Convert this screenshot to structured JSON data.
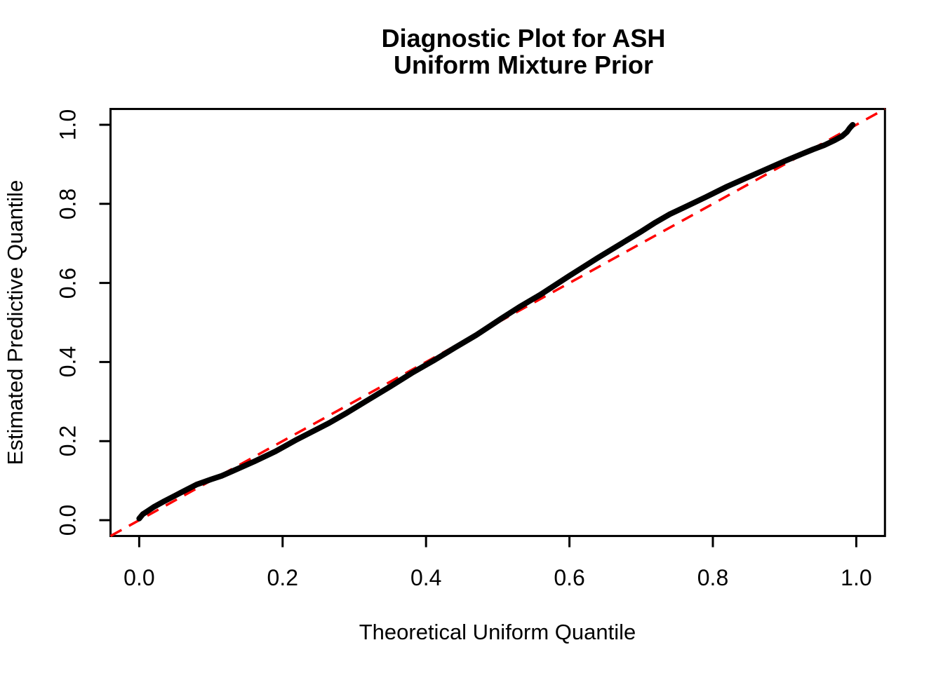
{
  "title": {
    "line1": "Diagnostic Plot for ASH",
    "line2": "Uniform Mixture Prior"
  },
  "axes": {
    "x_label": "Theoretical Uniform Quantile",
    "y_label": "Estimated Predictive Quantile",
    "x_tick_labels": [
      "0.0",
      "0.2",
      "0.4",
      "0.6",
      "0.8",
      "1.0"
    ],
    "y_tick_labels": [
      "0.0",
      "0.2",
      "0.4",
      "0.6",
      "0.8",
      "1.0"
    ]
  },
  "colors": {
    "background": "#FFFFFF",
    "curve": "#000000",
    "reference_line": "#FF0000",
    "box": "#000000",
    "text": "#000000"
  },
  "chart_data": {
    "type": "line",
    "title": "Diagnostic Plot for ASH Uniform Mixture Prior",
    "xlabel": "Theoretical Uniform Quantile",
    "ylabel": "Estimated Predictive Quantile",
    "xlim": [
      -0.04,
      1.04
    ],
    "ylim": [
      -0.04,
      1.04
    ],
    "x_ticks": [
      0.0,
      0.2,
      0.4,
      0.6,
      0.8,
      1.0
    ],
    "y_ticks": [
      0.0,
      0.2,
      0.4,
      0.6,
      0.8,
      1.0
    ],
    "grid": false,
    "legend": "none",
    "series": [
      {
        "name": "estimated-predictive-quantiles",
        "color": "#000000",
        "style": "solid-thick",
        "x": [
          0.0,
          0.005,
          0.01,
          0.02,
          0.035,
          0.05,
          0.065,
          0.08,
          0.1,
          0.115,
          0.13,
          0.16,
          0.19,
          0.22,
          0.25,
          0.265,
          0.29,
          0.32,
          0.35,
          0.38,
          0.41,
          0.44,
          0.47,
          0.49,
          0.505,
          0.53,
          0.56,
          0.6,
          0.64,
          0.68,
          0.7,
          0.72,
          0.74,
          0.76,
          0.79,
          0.82,
          0.85,
          0.88,
          0.9,
          0.92,
          0.94,
          0.955,
          0.97,
          0.98,
          0.987,
          0.991,
          0.995
        ],
        "y": [
          0.004,
          0.015,
          0.021,
          0.033,
          0.048,
          0.062,
          0.076,
          0.09,
          0.103,
          0.112,
          0.124,
          0.148,
          0.174,
          0.204,
          0.232,
          0.246,
          0.272,
          0.305,
          0.338,
          0.372,
          0.403,
          0.436,
          0.468,
          0.492,
          0.51,
          0.539,
          0.571,
          0.618,
          0.664,
          0.708,
          0.73,
          0.753,
          0.774,
          0.791,
          0.817,
          0.844,
          0.868,
          0.892,
          0.908,
          0.923,
          0.938,
          0.948,
          0.961,
          0.971,
          0.982,
          0.992,
          1.0
        ]
      }
    ],
    "reference_line": {
      "name": "identity-line",
      "color": "#FF0000",
      "style": "dashed",
      "from": [
        -0.04,
        -0.04
      ],
      "to": [
        1.04,
        1.04
      ]
    }
  }
}
